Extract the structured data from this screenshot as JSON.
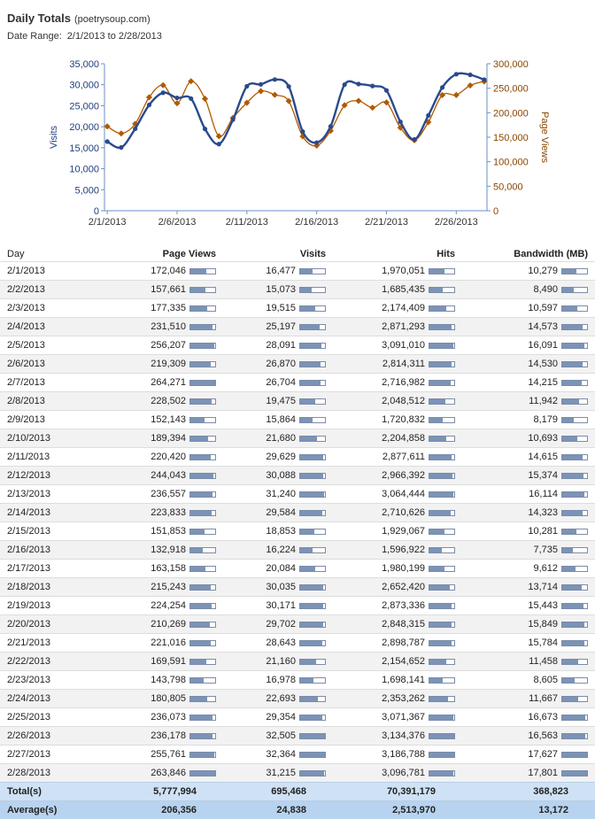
{
  "header": {
    "title": "Daily Totals",
    "subtitle": "(poetrysoup.com)",
    "date_range_label": "Date Range:",
    "date_range_value": "2/1/2013 to 2/28/2013"
  },
  "colors": {
    "visits": "#2a4a8c",
    "page_views": "#b05a00",
    "axis": "#6b8fc8"
  },
  "chart_data": {
    "type": "line",
    "x": [
      "2/1/2013",
      "2/2/2013",
      "2/3/2013",
      "2/4/2013",
      "2/5/2013",
      "2/6/2013",
      "2/7/2013",
      "2/8/2013",
      "2/9/2013",
      "2/10/2013",
      "2/11/2013",
      "2/12/2013",
      "2/13/2013",
      "2/14/2013",
      "2/15/2013",
      "2/16/2013",
      "2/17/2013",
      "2/18/2013",
      "2/19/2013",
      "2/20/2013",
      "2/21/2013",
      "2/22/2013",
      "2/23/2013",
      "2/24/2013",
      "2/25/2013",
      "2/26/2013",
      "2/27/2013",
      "2/28/2013"
    ],
    "x_tick_labels": [
      "2/1/2013",
      "2/6/2013",
      "2/11/2013",
      "2/16/2013",
      "2/21/2013",
      "2/26/2013"
    ],
    "series": [
      {
        "name": "Visits",
        "axis": "left",
        "color": "#2a4a8c",
        "values": [
          16477,
          15073,
          19515,
          25197,
          28091,
          26870,
          26704,
          19475,
          15864,
          21680,
          29629,
          30088,
          31240,
          29584,
          18853,
          16224,
          20084,
          30035,
          30171,
          29702,
          28643,
          21160,
          16978,
          22693,
          29354,
          32505,
          32364,
          31215
        ]
      },
      {
        "name": "Page Views",
        "axis": "right",
        "color": "#b05a00",
        "values": [
          172046,
          157661,
          177335,
          231510,
          256207,
          219309,
          264271,
          228502,
          152143,
          189394,
          220420,
          244043,
          236557,
          223833,
          151853,
          132918,
          163158,
          215243,
          224254,
          210269,
          221016,
          169591,
          143798,
          180805,
          236073,
          236178,
          255761,
          263846
        ]
      }
    ],
    "ylabel": "Visits",
    "ylabel_right": "Page Views",
    "ylim": [
      0,
      35000
    ],
    "ylim_right": [
      0,
      300000
    ],
    "y_ticks": [
      "0",
      "5,000",
      "10,000",
      "15,000",
      "20,000",
      "25,000",
      "30,000",
      "35,000"
    ],
    "y_ticks_right": [
      "0",
      "50,000",
      "100,000",
      "150,000",
      "200,000",
      "250,000",
      "300,000"
    ],
    "grid": false
  },
  "table": {
    "headers": {
      "day": "Day",
      "page_views": "Page Views",
      "visits": "Visits",
      "hits": "Hits",
      "bandwidth": "Bandwidth (MB)"
    },
    "max": {
      "page_views": 264271,
      "visits": 32505,
      "hits": 3186788,
      "bandwidth": 17801
    },
    "rows": [
      {
        "day": "2/1/2013",
        "page_views": "172,046",
        "visits": "16,477",
        "hits": "1,970,051",
        "bandwidth": "10,279",
        "pv": 172046,
        "vi": 16477,
        "hi": 1970051,
        "bw": 10279
      },
      {
        "day": "2/2/2013",
        "page_views": "157,661",
        "visits": "15,073",
        "hits": "1,685,435",
        "bandwidth": "8,490",
        "pv": 157661,
        "vi": 15073,
        "hi": 1685435,
        "bw": 8490
      },
      {
        "day": "2/3/2013",
        "page_views": "177,335",
        "visits": "19,515",
        "hits": "2,174,409",
        "bandwidth": "10,597",
        "pv": 177335,
        "vi": 19515,
        "hi": 2174409,
        "bw": 10597
      },
      {
        "day": "2/4/2013",
        "page_views": "231,510",
        "visits": "25,197",
        "hits": "2,871,293",
        "bandwidth": "14,573",
        "pv": 231510,
        "vi": 25197,
        "hi": 2871293,
        "bw": 14573
      },
      {
        "day": "2/5/2013",
        "page_views": "256,207",
        "visits": "28,091",
        "hits": "3,091,010",
        "bandwidth": "16,091",
        "pv": 256207,
        "vi": 28091,
        "hi": 3091010,
        "bw": 16091
      },
      {
        "day": "2/6/2013",
        "page_views": "219,309",
        "visits": "26,870",
        "hits": "2,814,311",
        "bandwidth": "14,530",
        "pv": 219309,
        "vi": 26870,
        "hi": 2814311,
        "bw": 14530
      },
      {
        "day": "2/7/2013",
        "page_views": "264,271",
        "visits": "26,704",
        "hits": "2,716,982",
        "bandwidth": "14,215",
        "pv": 264271,
        "vi": 26704,
        "hi": 2716982,
        "bw": 14215
      },
      {
        "day": "2/8/2013",
        "page_views": "228,502",
        "visits": "19,475",
        "hits": "2,048,512",
        "bandwidth": "11,942",
        "pv": 228502,
        "vi": 19475,
        "hi": 2048512,
        "bw": 11942
      },
      {
        "day": "2/9/2013",
        "page_views": "152,143",
        "visits": "15,864",
        "hits": "1,720,832",
        "bandwidth": "8,179",
        "pv": 152143,
        "vi": 15864,
        "hi": 1720832,
        "bw": 8179
      },
      {
        "day": "2/10/2013",
        "page_views": "189,394",
        "visits": "21,680",
        "hits": "2,204,858",
        "bandwidth": "10,693",
        "pv": 189394,
        "vi": 21680,
        "hi": 2204858,
        "bw": 10693
      },
      {
        "day": "2/11/2013",
        "page_views": "220,420",
        "visits": "29,629",
        "hits": "2,877,611",
        "bandwidth": "14,615",
        "pv": 220420,
        "vi": 29629,
        "hi": 2877611,
        "bw": 14615
      },
      {
        "day": "2/12/2013",
        "page_views": "244,043",
        "visits": "30,088",
        "hits": "2,966,392",
        "bandwidth": "15,374",
        "pv": 244043,
        "vi": 30088,
        "hi": 2966392,
        "bw": 15374
      },
      {
        "day": "2/13/2013",
        "page_views": "236,557",
        "visits": "31,240",
        "hits": "3,064,444",
        "bandwidth": "16,114",
        "pv": 236557,
        "vi": 31240,
        "hi": 3064444,
        "bw": 16114
      },
      {
        "day": "2/14/2013",
        "page_views": "223,833",
        "visits": "29,584",
        "hits": "2,710,626",
        "bandwidth": "14,323",
        "pv": 223833,
        "vi": 29584,
        "hi": 2710626,
        "bw": 14323
      },
      {
        "day": "2/15/2013",
        "page_views": "151,853",
        "visits": "18,853",
        "hits": "1,929,067",
        "bandwidth": "10,281",
        "pv": 151853,
        "vi": 18853,
        "hi": 1929067,
        "bw": 10281
      },
      {
        "day": "2/16/2013",
        "page_views": "132,918",
        "visits": "16,224",
        "hits": "1,596,922",
        "bandwidth": "7,735",
        "pv": 132918,
        "vi": 16224,
        "hi": 1596922,
        "bw": 7735
      },
      {
        "day": "2/17/2013",
        "page_views": "163,158",
        "visits": "20,084",
        "hits": "1,980,199",
        "bandwidth": "9,612",
        "pv": 163158,
        "vi": 20084,
        "hi": 1980199,
        "bw": 9612
      },
      {
        "day": "2/18/2013",
        "page_views": "215,243",
        "visits": "30,035",
        "hits": "2,652,420",
        "bandwidth": "13,714",
        "pv": 215243,
        "vi": 30035,
        "hi": 2652420,
        "bw": 13714
      },
      {
        "day": "2/19/2013",
        "page_views": "224,254",
        "visits": "30,171",
        "hits": "2,873,336",
        "bandwidth": "15,443",
        "pv": 224254,
        "vi": 30171,
        "hi": 2873336,
        "bw": 15443
      },
      {
        "day": "2/20/2013",
        "page_views": "210,269",
        "visits": "29,702",
        "hits": "2,848,315",
        "bandwidth": "15,849",
        "pv": 210269,
        "vi": 29702,
        "hi": 2848315,
        "bw": 15849
      },
      {
        "day": "2/21/2013",
        "page_views": "221,016",
        "visits": "28,643",
        "hits": "2,898,787",
        "bandwidth": "15,784",
        "pv": 221016,
        "vi": 28643,
        "hi": 2898787,
        "bw": 15784
      },
      {
        "day": "2/22/2013",
        "page_views": "169,591",
        "visits": "21,160",
        "hits": "2,154,652",
        "bandwidth": "11,458",
        "pv": 169591,
        "vi": 21160,
        "hi": 2154652,
        "bw": 11458
      },
      {
        "day": "2/23/2013",
        "page_views": "143,798",
        "visits": "16,978",
        "hits": "1,698,141",
        "bandwidth": "8,605",
        "pv": 143798,
        "vi": 16978,
        "hi": 1698141,
        "bw": 8605
      },
      {
        "day": "2/24/2013",
        "page_views": "180,805",
        "visits": "22,693",
        "hits": "2,353,262",
        "bandwidth": "11,667",
        "pv": 180805,
        "vi": 22693,
        "hi": 2353262,
        "bw": 11667
      },
      {
        "day": "2/25/2013",
        "page_views": "236,073",
        "visits": "29,354",
        "hits": "3,071,367",
        "bandwidth": "16,673",
        "pv": 236073,
        "vi": 29354,
        "hi": 3071367,
        "bw": 16673
      },
      {
        "day": "2/26/2013",
        "page_views": "236,178",
        "visits": "32,505",
        "hits": "3,134,376",
        "bandwidth": "16,563",
        "pv": 236178,
        "vi": 32505,
        "hi": 3134376,
        "bw": 16563
      },
      {
        "day": "2/27/2013",
        "page_views": "255,761",
        "visits": "32,364",
        "hits": "3,186,788",
        "bandwidth": "17,627",
        "pv": 255761,
        "vi": 32364,
        "hi": 3186788,
        "bw": 17627
      },
      {
        "day": "2/28/2013",
        "page_views": "263,846",
        "visits": "31,215",
        "hits": "3,096,781",
        "bandwidth": "17,801",
        "pv": 263846,
        "vi": 31215,
        "hi": 3096781,
        "bw": 17801
      }
    ],
    "totals": {
      "label": "Total(s)",
      "page_views": "5,777,994",
      "visits": "695,468",
      "hits": "70,391,179",
      "bandwidth": "368,823"
    },
    "averages": {
      "label": "Average(s)",
      "page_views": "206,356",
      "visits": "24,838",
      "hits": "2,513,970",
      "bandwidth": "13,172"
    }
  }
}
